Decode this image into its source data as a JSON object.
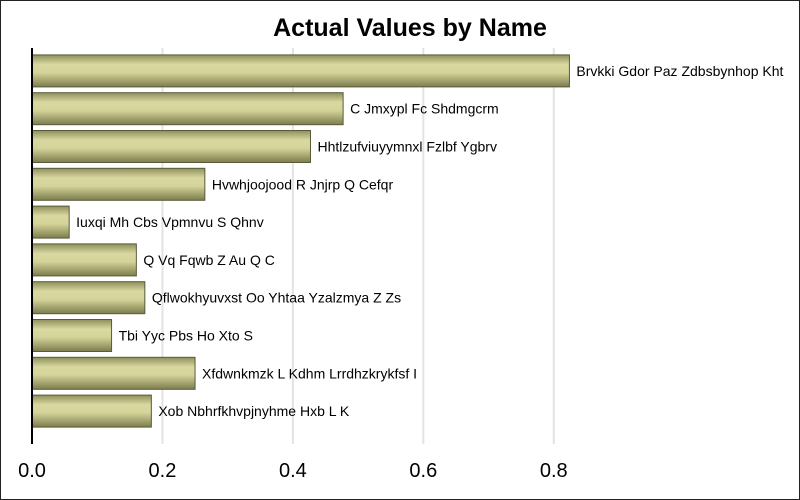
{
  "chart_data": {
    "type": "bar",
    "orientation": "horizontal",
    "title": "Actual Values by Name",
    "xlabel": "",
    "ylabel": "",
    "categories": [
      "Brvkki Gdor Paz Zdbsbynhop Kht",
      "C Jmxypl Fc Shdmgcrm",
      "Hhtlzufviuyymnxl Fzlbf Ygbrv",
      "Hvwhjoojood R Jnjrp  Q Cefqr",
      "Iuxqi Mh Cbs Vpmnvu S Qhnv",
      "Q Vq  Fqwb  Z Au  Q   C",
      "Qflwokhyuvxst Oo  Yhtaa Yzalzmya  Z Zs",
      "Tbi Yyc Pbs  Ho Xto S",
      "Xfdwnkmzk L  Kdhm Lrrdhzkrykfsf I",
      "Xob Nbhrfkhvpjnyhme Hxb L K"
    ],
    "values": [
      0.824,
      0.477,
      0.427,
      0.265,
      0.057,
      0.16,
      0.173,
      0.122,
      0.25,
      0.183
    ],
    "xlim": [
      0,
      0.9
    ],
    "xticks": [
      0,
      0.2,
      0.4,
      0.6,
      0.8
    ],
    "xtick_labels": [
      "0.0",
      "0.2",
      "0.4",
      "0.6",
      "0.8"
    ],
    "grid": true,
    "legend": "none",
    "bar_color": "#c9c98c",
    "bar_edge_color": "#5a5a3a"
  }
}
